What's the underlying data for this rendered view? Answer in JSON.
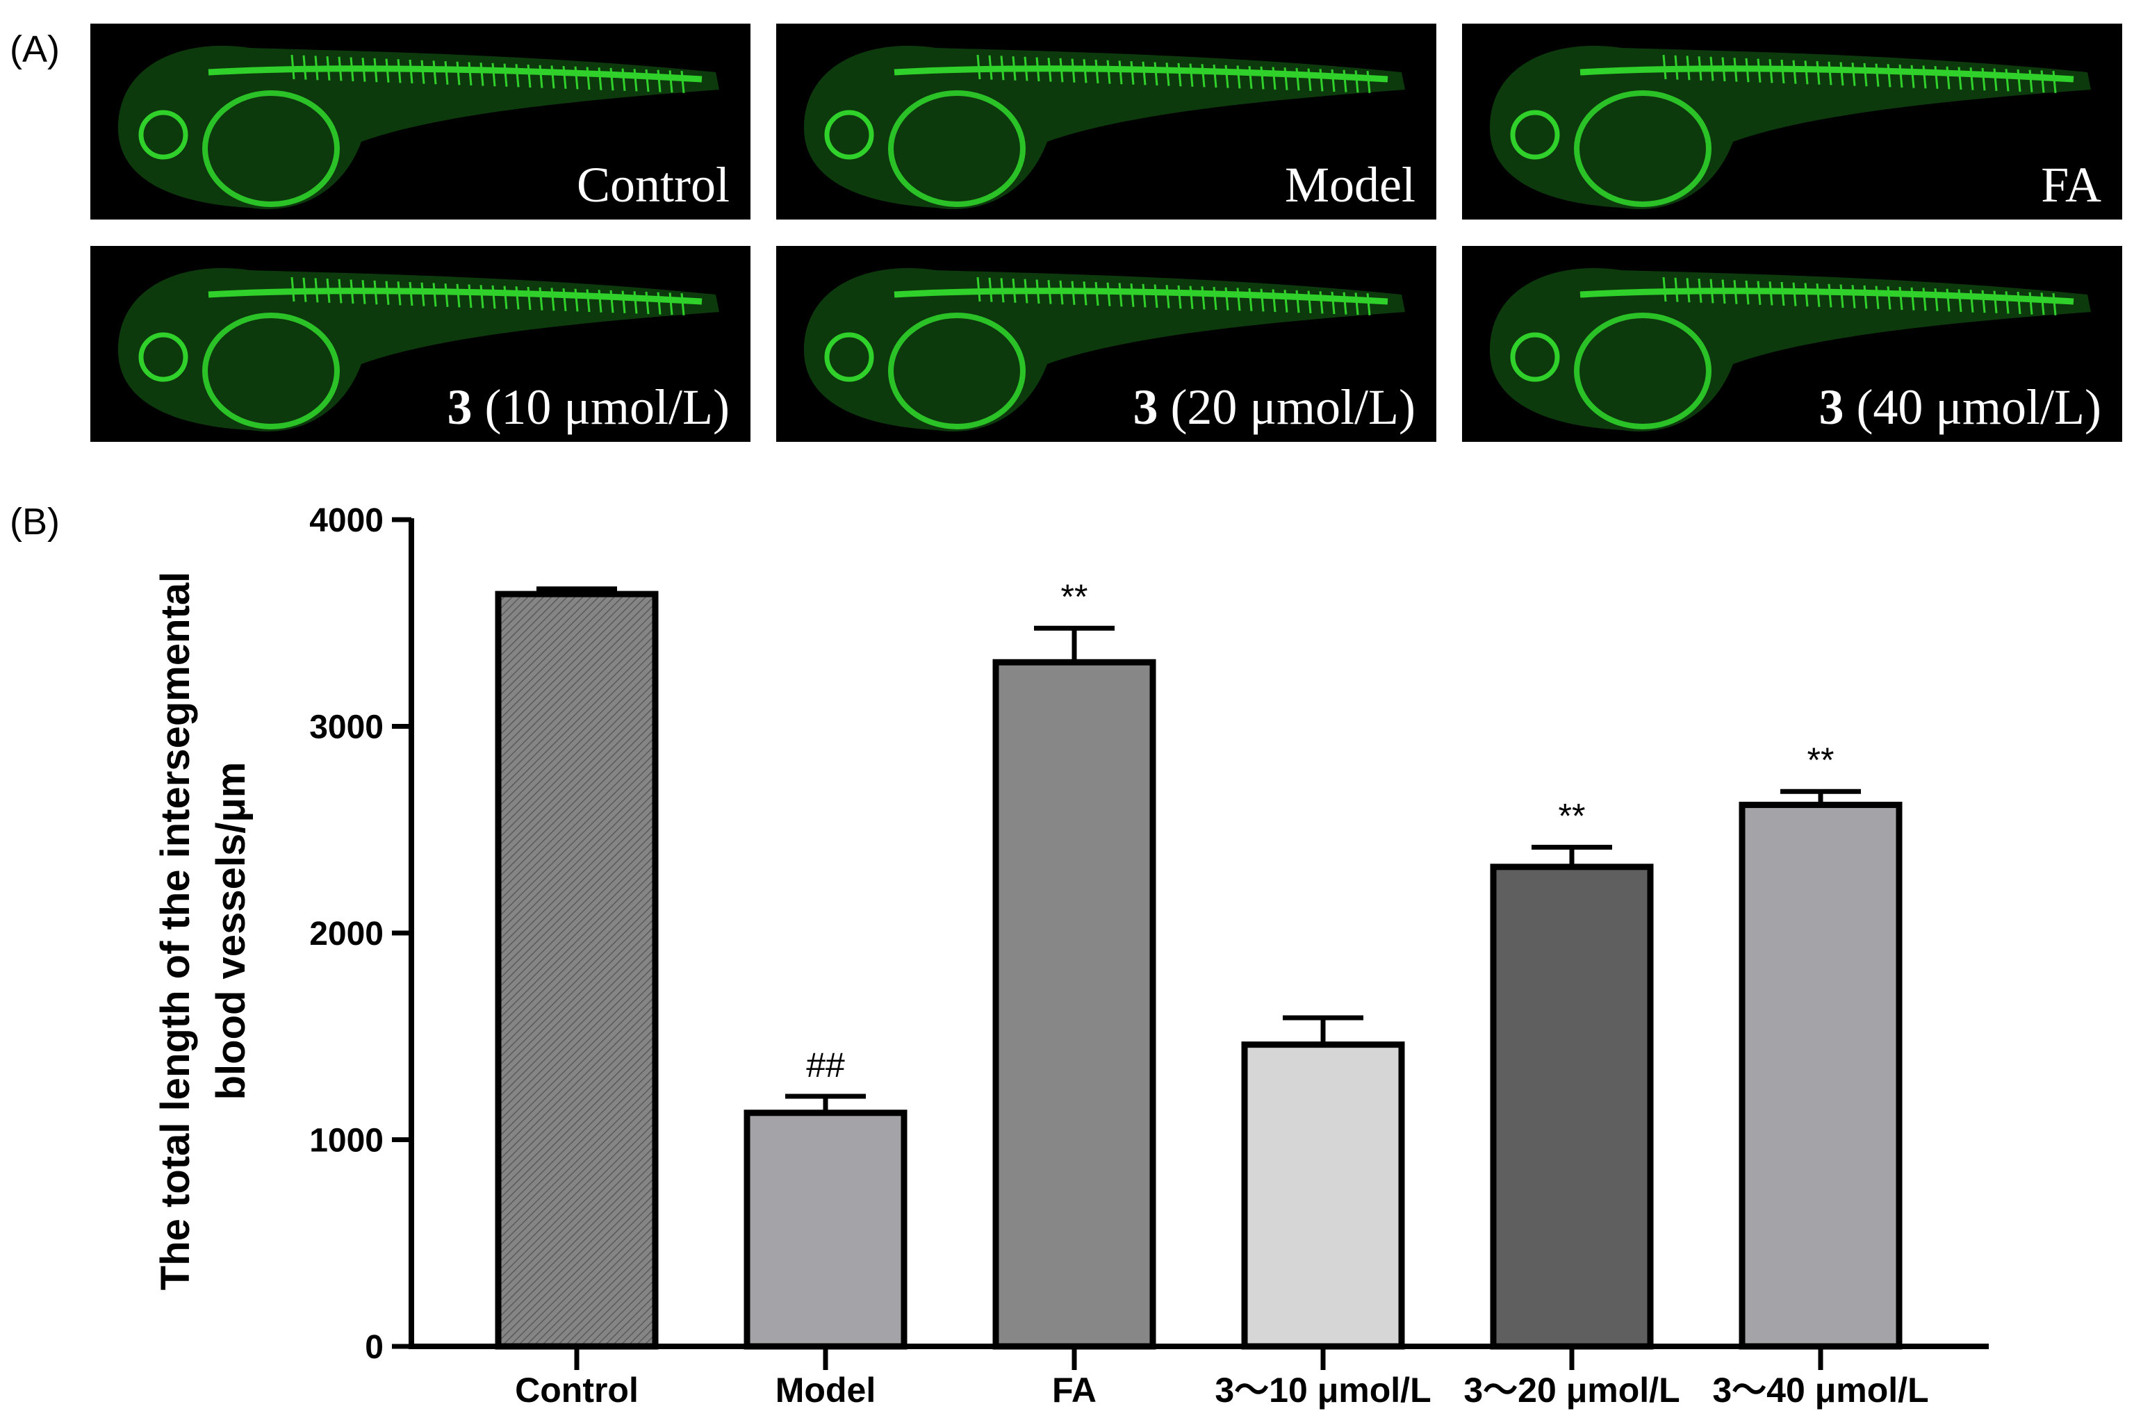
{
  "panel_a": {
    "label": "(A)",
    "images": [
      {
        "caption": "Control",
        "bold_prefix": ""
      },
      {
        "caption": "Model",
        "bold_prefix": ""
      },
      {
        "caption": "FA",
        "bold_prefix": ""
      },
      {
        "caption": " (10 μmol/L)",
        "bold_prefix": "3"
      },
      {
        "caption": " (20 μmol/L)",
        "bold_prefix": "3"
      },
      {
        "caption": " (40 μmol/L)",
        "bold_prefix": "3"
      }
    ],
    "fluorescence_color": "#2fd12a"
  },
  "panel_b": {
    "label": "(B)"
  },
  "chart_data": {
    "type": "bar",
    "categories": [
      "Control",
      "Model",
      "FA",
      "3～10 μmol/L",
      "3～20 μmol/L",
      "3～40 μmol/L"
    ],
    "values": [
      3640,
      1130,
      3310,
      1460,
      2320,
      2620
    ],
    "errors": [
      25,
      80,
      165,
      130,
      95,
      65
    ],
    "annotations": [
      "",
      "##",
      "**",
      "",
      "**",
      "**"
    ],
    "bar_colors": [
      "#7d7d7d",
      "#a3a3a8",
      "#878787",
      "#d6d6d6",
      "#5f5f5f",
      "#a3a3a8"
    ],
    "hatched": [
      true,
      false,
      false,
      false,
      false,
      false
    ],
    "ylabel_lines": [
      "The total length of the intersegmental",
      "blood vessels/μm"
    ],
    "xlabel": "",
    "yticks": [
      "0",
      "1000",
      "2000",
      "3000",
      "4000"
    ],
    "ylim": [
      0,
      4000
    ],
    "grid": false
  }
}
